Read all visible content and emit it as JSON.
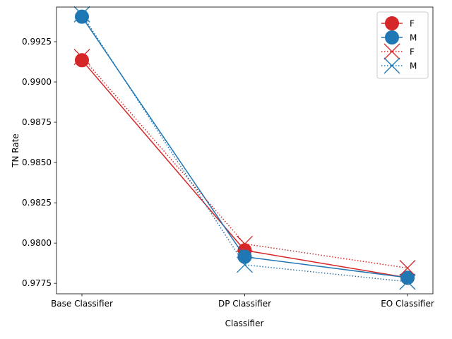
{
  "chart_data": {
    "type": "line",
    "xlabel": "Classifier",
    "ylabel": "TN Rate",
    "categories": [
      "Base Classifier",
      "DP Classifier",
      "EO Classifier"
    ],
    "ylim": [
      0.97685,
      0.99465
    ],
    "yticks": [
      0.9775,
      0.98,
      0.9825,
      0.985,
      0.9875,
      0.99,
      0.9925
    ],
    "ytick_labels": [
      "0.9775",
      "0.9800",
      "0.9825",
      "0.9850",
      "0.9875",
      "0.9900",
      "0.9925"
    ],
    "grid": false,
    "legend_position": "top-right",
    "series": [
      {
        "name": "F",
        "color": "#d62728",
        "linestyle": "solid",
        "marker": "circle",
        "values": [
          0.99135,
          0.97955,
          0.97785
        ]
      },
      {
        "name": "M",
        "color": "#1f77b4",
        "linestyle": "solid",
        "marker": "circle",
        "values": [
          0.99405,
          0.97915,
          0.97785
        ]
      },
      {
        "name": "F",
        "color": "#d62728",
        "linestyle": "dotted",
        "marker": "x",
        "values": [
          0.99155,
          0.97995,
          0.97845
        ]
      },
      {
        "name": "M",
        "color": "#1f77b4",
        "linestyle": "dotted",
        "marker": "x",
        "values": [
          0.9942,
          0.97865,
          0.9776
        ]
      }
    ]
  }
}
